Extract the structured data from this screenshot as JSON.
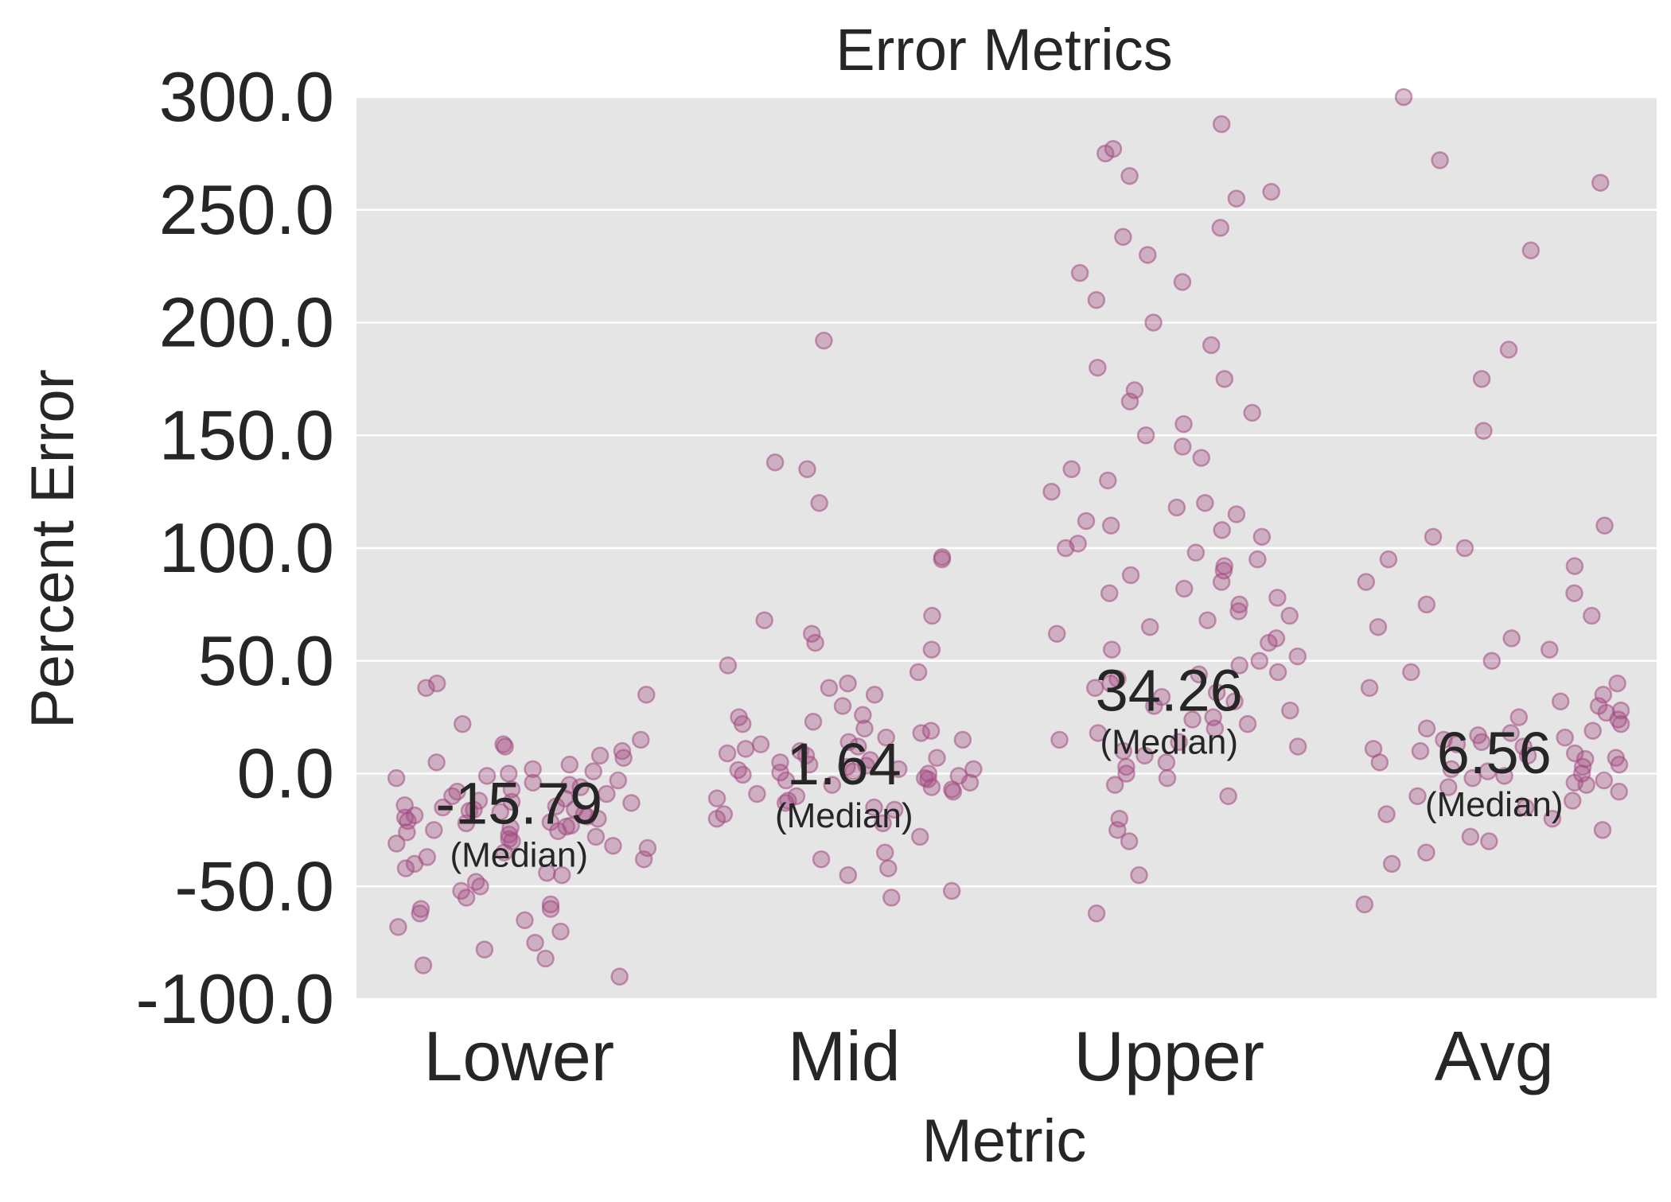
{
  "chart_data": {
    "type": "scatter",
    "title": "Error Metrics",
    "xlabel": "Metric",
    "ylabel": "Percent Error",
    "categories": [
      "Lower",
      "Mid",
      "Upper",
      "Avg"
    ],
    "ylim": [
      -100,
      300
    ],
    "yticks": [
      "300.0",
      "250.0",
      "200.0",
      "150.0",
      "100.0",
      "50.0",
      "0.0",
      "-50.0",
      "-100.0"
    ],
    "grid": true,
    "point_color": "#a24b82",
    "background_color": "#e5e5e5",
    "grid_color": "#ffffff",
    "median_caption": "(Median)",
    "series": [
      {
        "category": "Lower",
        "median": -15.79,
        "median_label": "-15.79",
        "values": [
          -15.8,
          -15,
          -18,
          -12,
          -20,
          -22,
          -10,
          -25,
          -8,
          -30,
          -5,
          -28,
          -14,
          -17,
          -19,
          -11,
          -23,
          -26,
          -9,
          -13,
          -16,
          -21,
          -24,
          -6,
          -3,
          0,
          2,
          5,
          8,
          10,
          12,
          -35,
          -40,
          -45,
          -50,
          -55,
          -60,
          -65,
          -70,
          -78,
          -85,
          -90,
          -60,
          -58,
          -48,
          -42,
          -38,
          -33,
          -32,
          -29,
          -27,
          40,
          38,
          35,
          22,
          15,
          13,
          -62,
          -68,
          -82,
          -75,
          -52,
          -44,
          -37,
          -31,
          -4,
          -2,
          1,
          4,
          7,
          -1,
          -7,
          -18.5,
          -16.5,
          -14.5,
          -12.5,
          -19.5,
          -21.5,
          -23.5,
          -25.5
        ]
      },
      {
        "category": "Mid",
        "median": 1.64,
        "median_label": "1.64",
        "values": [
          1.6,
          0,
          2,
          3,
          -1,
          -2,
          4,
          5,
          -3,
          6,
          -4,
          7,
          -5,
          8,
          -6,
          9,
          10,
          -8,
          12,
          -10,
          14,
          15,
          -12,
          18,
          20,
          22,
          25,
          -15,
          -18,
          -20,
          1,
          2,
          0.5,
          -0.5,
          3.5,
          -2.5,
          30,
          35,
          38,
          40,
          45,
          48,
          55,
          58,
          62,
          68,
          70,
          95,
          96,
          120,
          135,
          138,
          192,
          -22,
          -28,
          -35,
          -38,
          -42,
          -45,
          -52,
          -55,
          11,
          13,
          -7,
          -9,
          16,
          -11,
          19,
          23,
          -13,
          26,
          -16
        ]
      },
      {
        "category": "Upper",
        "median": 34.26,
        "median_label": "34.26",
        "values": [
          34,
          30,
          25,
          20,
          15,
          10,
          5,
          0,
          -5,
          -10,
          40,
          45,
          50,
          55,
          60,
          65,
          70,
          75,
          80,
          85,
          90,
          95,
          100,
          105,
          110,
          115,
          120,
          125,
          130,
          135,
          140,
          145,
          150,
          155,
          160,
          165,
          170,
          175,
          180,
          190,
          200,
          210,
          218,
          222,
          230,
          238,
          242,
          255,
          258,
          265,
          275,
          277,
          288,
          -20,
          -25,
          -30,
          -45,
          -62,
          12,
          18,
          22,
          28,
          32,
          36,
          42,
          48,
          52,
          58,
          62,
          68,
          72,
          78,
          82,
          88,
          92,
          98,
          102,
          108,
          112,
          118,
          8,
          3,
          -2,
          14,
          24,
          38,
          44
        ]
      },
      {
        "category": "Avg",
        "median": 6.56,
        "median_label": "6.56",
        "values": [
          6.5,
          5,
          8,
          3,
          10,
          0,
          12,
          -2,
          15,
          -5,
          18,
          -8,
          20,
          -10,
          22,
          -12,
          25,
          -15,
          28,
          -18,
          30,
          -20,
          35,
          -25,
          40,
          -28,
          45,
          -30,
          50,
          -35,
          55,
          -40,
          60,
          -58,
          65,
          70,
          75,
          80,
          85,
          92,
          95,
          100,
          105,
          110,
          152,
          175,
          188,
          232,
          262,
          272,
          300,
          2,
          4,
          7,
          9,
          11,
          13,
          16,
          1,
          -1,
          -3,
          -4,
          -6,
          14,
          17,
          19,
          24,
          27,
          32,
          38
        ]
      }
    ]
  }
}
